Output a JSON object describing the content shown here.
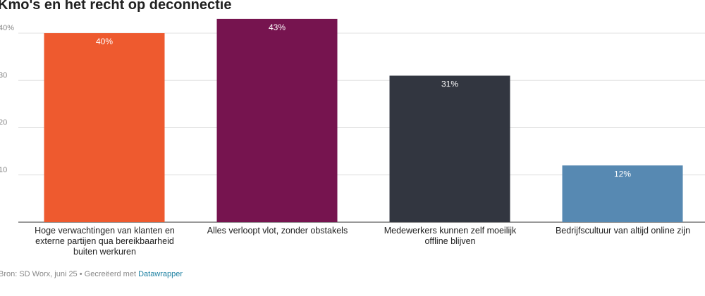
{
  "chart_data": {
    "type": "bar",
    "title": "Kmo's en het recht op deconnectie",
    "categories": [
      "Hoge verwachtingen van klanten en externe partijen qua bereikbaarheid buiten werkuren",
      "Alles verloopt vlot, zonder obstakels",
      "Medewerkers kunnen zelf moeilijk offline blijven",
      "Bedrijfscultuur van altijd online zijn"
    ],
    "values": [
      40,
      43,
      31,
      12
    ],
    "value_labels": [
      "40%",
      "43%",
      "31%",
      "12%"
    ],
    "colors": [
      "#ee5a2f",
      "#76144f",
      "#323640",
      "#5789b2"
    ],
    "ylim": [
      0,
      47
    ],
    "yticks": [
      10,
      20,
      30,
      {
        "value": 40,
        "label": "40%"
      }
    ],
    "grid": true,
    "source": "Bron: SD Worx, juni 25",
    "credit": "• Gecreëerd met",
    "credit_link": "Datawrapper"
  }
}
